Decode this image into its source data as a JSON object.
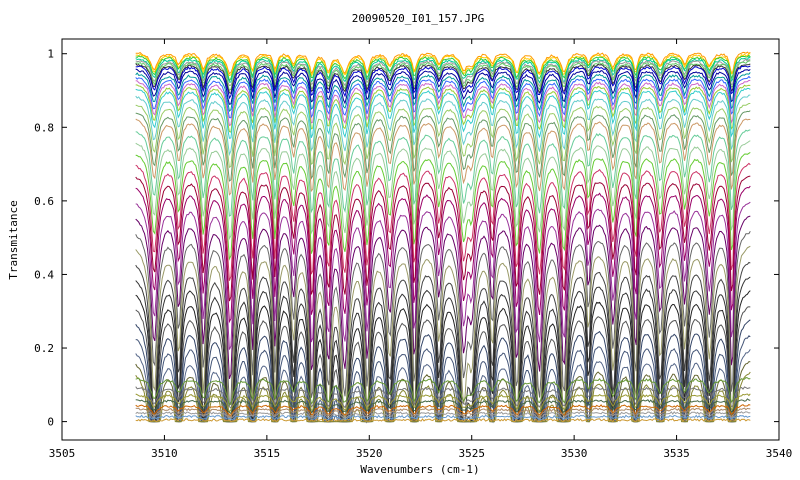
{
  "chart_data": {
    "type": "line",
    "title": "20090520_I01_157.JPG",
    "xlabel": "Wavenumbers (cm-1)",
    "ylabel": "Transmitance",
    "xlim": [
      3505,
      3540
    ],
    "ylim": [
      -0.05,
      1.04
    ],
    "xticks": [
      3505,
      3510,
      3515,
      3520,
      3525,
      3530,
      3535,
      3540
    ],
    "yticks": [
      0,
      0.2,
      0.4,
      0.6,
      0.8,
      1
    ],
    "ytick_labels": [
      "0",
      "0.2",
      "0.4",
      "0.6",
      "0.8",
      "1"
    ],
    "data_x_range": [
      3508.6,
      3538.6
    ],
    "grid": false,
    "legend": "none",
    "absorption_lines_cm1": [
      3509.5,
      3510.7,
      3511.9,
      3513.2,
      3514.3,
      3515.4,
      3516.3,
      3517.2,
      3518.0,
      3518.8,
      3519.9,
      3521.0,
      3522.2,
      3523.4,
      3524.6,
      3525.0,
      3526.0,
      3527.2,
      3528.3,
      3529.5,
      3530.7,
      3531.9,
      3533.0,
      3534.2,
      3535.4,
      3536.6,
      3537.7
    ],
    "series_summary": {
      "count": 46,
      "baseline_levels": [
        1.005,
        1.0,
        0.995,
        0.99,
        0.985,
        0.98,
        0.975,
        0.97,
        0.96,
        0.95,
        0.94,
        0.93,
        0.92,
        0.91,
        0.89,
        0.87,
        0.85,
        0.83,
        0.8,
        0.77,
        0.74,
        0.71,
        0.68,
        0.65,
        0.61,
        0.57,
        0.53,
        0.49,
        0.45,
        0.41,
        0.37,
        0.33,
        0.29,
        0.25,
        0.21,
        0.18,
        0.15,
        0.12,
        0.095,
        0.075,
        0.06,
        0.045,
        0.035,
        0.025,
        0.015,
        0.005
      ],
      "colors": [
        "#ff9900",
        "#ffcc00",
        "#33cc33",
        "#00cc99",
        "#999999",
        "#66cc66",
        "#333333",
        "#0000cc",
        "#000099",
        "#009999",
        "#3366ff",
        "#cc66cc",
        "#99cc33",
        "#33cccc",
        "#66cccc",
        "#99cc66",
        "#669966",
        "#cc9966",
        "#66cc99",
        "#99cc99",
        "#66cc33",
        "#cc3366",
        "#990033",
        "#990066",
        "#993399",
        "#660066",
        "#666666",
        "#999966",
        "#444444",
        "#333333",
        "#222222",
        "#555555",
        "#334466",
        "#445577",
        "#556688",
        "#666633",
        "#888833",
        "#669933",
        "#777777",
        "#999933",
        "#446644",
        "#cc6600",
        "#aa8866",
        "#999999",
        "#6699cc",
        "#cc9933"
      ]
    }
  }
}
